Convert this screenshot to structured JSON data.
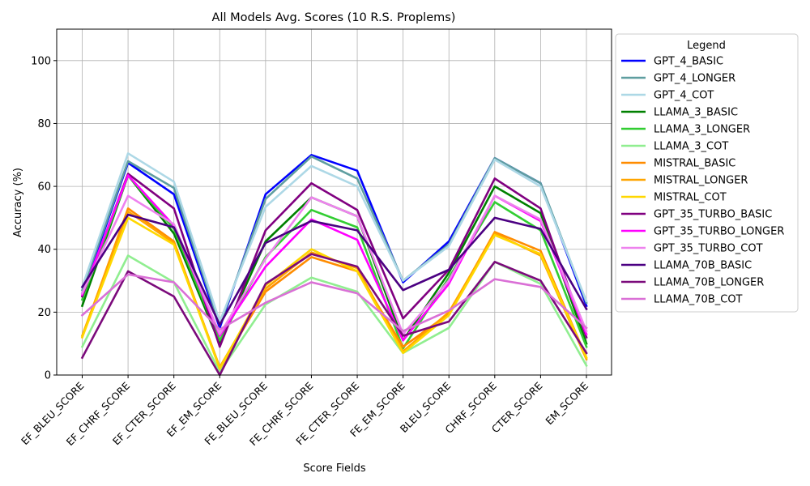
{
  "chart_data": {
    "type": "line",
    "title": "All Models Avg. Scores (10 R.S. Proplems)",
    "xlabel": "Score Fields",
    "ylabel": "Accuracy (%)",
    "ylim": [
      0,
      110
    ],
    "yticks": [
      0,
      20,
      40,
      60,
      80,
      100
    ],
    "grid": true,
    "legend_title": "Legend",
    "legend_position": "outside-right",
    "categories": [
      "EF_BLEU_SCORE",
      "EF_CHRF_SCORE",
      "EF_CTER_SCORE",
      "EF_EM_SCORE",
      "FE_BLEU_SCORE",
      "FE_CHRF_SCORE",
      "FE_CTER_SCORE",
      "FE_EM_SCORE",
      "BLEU_SCORE",
      "CHRF_SCORE",
      "CTER_SCORE",
      "EM_SCORE"
    ],
    "series": [
      {
        "name": "GPT_4_BASIC",
        "color": "#0000ff",
        "values": [
          26,
          67.5,
          57.5,
          15,
          57.5,
          70,
          65,
          29.5,
          42.5,
          69,
          61,
          22
        ]
      },
      {
        "name": "GPT_4_LONGER",
        "color": "#5f9ea0",
        "values": [
          27,
          68,
          59.5,
          16,
          56,
          69.5,
          62.5,
          30,
          41.5,
          69,
          61,
          23
        ]
      },
      {
        "name": "GPT_4_COT",
        "color": "#add8e6",
        "values": [
          28,
          70.5,
          61.5,
          17,
          53.5,
          66.5,
          60,
          30,
          41,
          68.5,
          60,
          23.5
        ]
      },
      {
        "name": "LLAMA_3_BASIC",
        "color": "#008000",
        "values": [
          22,
          63.5,
          45,
          10,
          42.5,
          56.5,
          50.5,
          11,
          32.5,
          60,
          51.5,
          10
        ]
      },
      {
        "name": "LLAMA_3_LONGER",
        "color": "#32cd32",
        "values": [
          24,
          63.5,
          46.5,
          11,
          37.5,
          52.5,
          47,
          8.5,
          31,
          55,
          46,
          9
        ]
      },
      {
        "name": "LLAMA_3_COT",
        "color": "#90ee90",
        "values": [
          9,
          38,
          29.5,
          1,
          22.5,
          31,
          26.5,
          7,
          15,
          36,
          29,
          3
        ]
      },
      {
        "name": "MISTRAL_BASIC",
        "color": "#ff8c00",
        "values": [
          12,
          53,
          42.5,
          2,
          26.5,
          37.5,
          33,
          9,
          19.5,
          45.5,
          39.5,
          5.5
        ]
      },
      {
        "name": "MISTRAL_LONGER",
        "color": "#ffa500",
        "values": [
          12.5,
          52,
          42,
          2.5,
          27.5,
          39,
          34,
          7.5,
          20,
          45,
          38,
          5
        ]
      },
      {
        "name": "MISTRAL_COT",
        "color": "#ffd700",
        "values": [
          12,
          50,
          41.5,
          2,
          28.5,
          40,
          33,
          7,
          19,
          44.5,
          38.5,
          5.5
        ]
      },
      {
        "name": "GPT_35_TURBO_BASIC",
        "color": "#800080",
        "values": [
          25,
          64,
          53,
          9,
          46,
          61,
          52.5,
          18,
          33.5,
          62.5,
          53,
          12
        ]
      },
      {
        "name": "GPT_35_TURBO_LONGER",
        "color": "#ff00ff",
        "values": [
          25.5,
          63.5,
          47.5,
          12.5,
          34.5,
          49.5,
          43,
          11,
          29,
          57,
          49,
          13
        ]
      },
      {
        "name": "GPT_35_TURBO_COT",
        "color": "#ee82ee",
        "values": [
          26,
          57,
          48,
          13,
          37,
          56.5,
          50.5,
          13,
          30,
          57,
          49.5,
          14
        ]
      },
      {
        "name": "LLAMA_70B_BASIC",
        "color": "#4b0082",
        "values": [
          28,
          51,
          47,
          16,
          42,
          49,
          46,
          27,
          33.5,
          50,
          46.5,
          21
        ]
      },
      {
        "name": "LLAMA_70B_LONGER",
        "color": "#7b0a7b",
        "values": [
          5.5,
          33,
          25,
          0,
          29,
          38.5,
          34.5,
          12.5,
          17,
          36,
          30,
          7
        ]
      },
      {
        "name": "LLAMA_70B_COT",
        "color": "#da70d6",
        "values": [
          19,
          32,
          29.5,
          14.5,
          23,
          29.5,
          26,
          14,
          20.5,
          30.5,
          28,
          15
        ]
      }
    ]
  }
}
